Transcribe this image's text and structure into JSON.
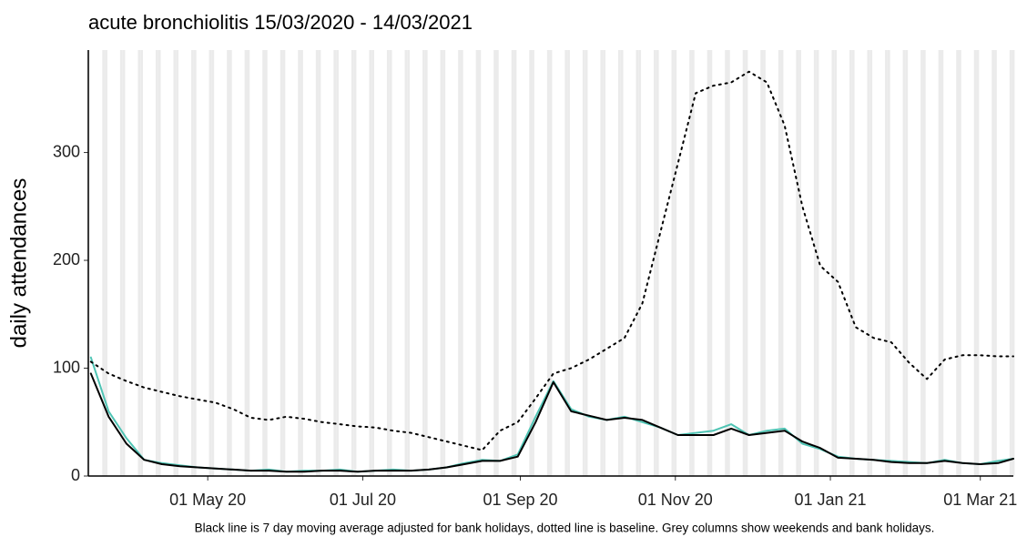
{
  "chart_data": {
    "type": "line",
    "title": "acute bronchiolitis 15/03/2020 - 14/03/2021",
    "ylabel": "daily attendances",
    "caption": "Black line is 7 day moving average adjusted for bank holidays, dotted line is baseline. Grey columns show weekends and bank holidays.",
    "x": [
      "2020-03-16",
      "2020-03-23",
      "2020-03-30",
      "2020-04-06",
      "2020-04-13",
      "2020-04-20",
      "2020-04-27",
      "2020-05-04",
      "2020-05-11",
      "2020-05-18",
      "2020-05-25",
      "2020-06-01",
      "2020-06-08",
      "2020-06-15",
      "2020-06-22",
      "2020-06-29",
      "2020-07-06",
      "2020-07-13",
      "2020-07-20",
      "2020-07-27",
      "2020-08-03",
      "2020-08-10",
      "2020-08-17",
      "2020-08-24",
      "2020-08-31",
      "2020-09-07",
      "2020-09-14",
      "2020-09-21",
      "2020-09-28",
      "2020-10-05",
      "2020-10-12",
      "2020-10-19",
      "2020-10-26",
      "2020-11-02",
      "2020-11-09",
      "2020-11-16",
      "2020-11-23",
      "2020-11-30",
      "2020-12-07",
      "2020-12-14",
      "2020-12-21",
      "2020-12-28",
      "2021-01-04",
      "2021-01-11",
      "2021-01-18",
      "2021-01-25",
      "2021-02-01",
      "2021-02-08",
      "2021-02-15",
      "2021-02-22",
      "2021-03-01",
      "2021-03-08",
      "2021-03-14"
    ],
    "series": [
      {
        "color": "#4fc4b4",
        "dash": "solid",
        "width": 2,
        "values": [
          110,
          60,
          35,
          15,
          12,
          10,
          8,
          7,
          6,
          5,
          6,
          4,
          5,
          5,
          6,
          4,
          5,
          6,
          5,
          6,
          8,
          12,
          15,
          14,
          20,
          55,
          88,
          62,
          55,
          52,
          55,
          50,
          45,
          38,
          40,
          42,
          48,
          38,
          42,
          44,
          30,
          25,
          18,
          16,
          15,
          14,
          13,
          12,
          15,
          12,
          11,
          14,
          16
        ]
      },
      {
        "color": "#000000",
        "dash": "dotted",
        "width": 2,
        "values": [
          106,
          95,
          88,
          82,
          78,
          74,
          71,
          68,
          62,
          54,
          52,
          55,
          53,
          50,
          48,
          46,
          45,
          42,
          40,
          36,
          32,
          28,
          24,
          42,
          50,
          72,
          95,
          100,
          108,
          118,
          128,
          160,
          225,
          290,
          355,
          362,
          365,
          375,
          365,
          325,
          250,
          195,
          180,
          138,
          128,
          124,
          105,
          90,
          108,
          112,
          112,
          111,
          111
        ]
      },
      {
        "color": "#000000",
        "dash": "solid",
        "width": 2,
        "values": [
          95,
          55,
          30,
          15,
          11,
          9,
          8,
          7,
          6,
          5,
          5,
          4,
          4,
          5,
          5,
          4,
          5,
          5,
          5,
          6,
          8,
          11,
          14,
          14,
          18,
          50,
          87,
          60,
          56,
          52,
          54,
          52,
          45,
          38,
          38,
          38,
          44,
          38,
          40,
          42,
          32,
          26,
          17,
          16,
          15,
          13,
          12,
          12,
          14,
          12,
          11,
          12,
          16
        ]
      }
    ],
    "xlim": [
      "2020-03-15",
      "2021-03-14"
    ],
    "xticks": [
      {
        "value": "2020-05-01",
        "label": "01 May 20"
      },
      {
        "value": "2020-07-01",
        "label": "01 Jul 20"
      },
      {
        "value": "2020-09-01",
        "label": "01 Sep 20"
      },
      {
        "value": "2020-11-01",
        "label": "01 Nov 20"
      },
      {
        "value": "2021-01-01",
        "label": "01 Jan 21"
      },
      {
        "value": "2021-03-01",
        "label": "01 Mar 21"
      }
    ],
    "ylim": [
      0,
      395
    ],
    "yticks": [
      0,
      100,
      200,
      300
    ],
    "weekend_columns": true
  }
}
